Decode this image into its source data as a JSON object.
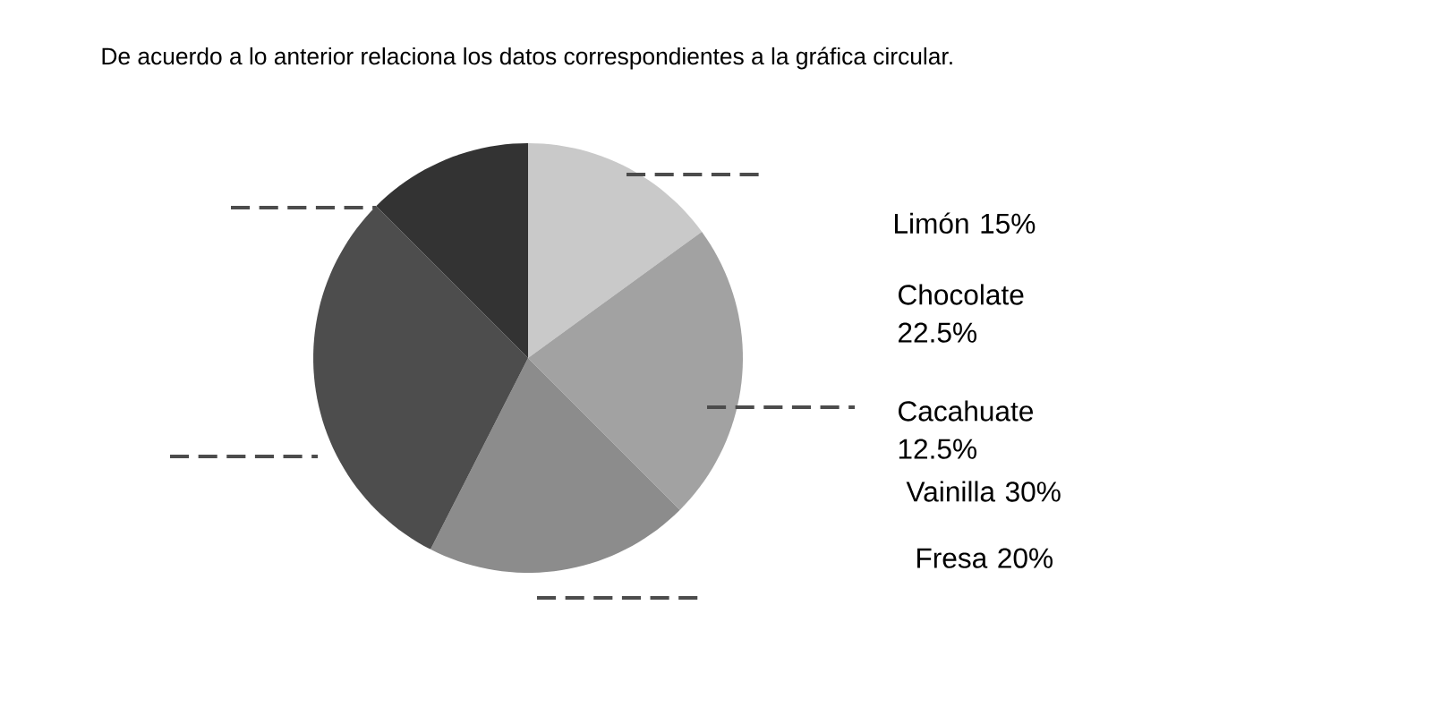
{
  "chart_data": {
    "type": "pie",
    "title": "De acuerdo a lo anterior relaciona los datos correspondientes a la gráfica circular.",
    "categories": [
      null,
      null,
      null,
      null,
      null
    ],
    "values": [
      15,
      22.5,
      20,
      30,
      12.5
    ],
    "colors": [
      "#c9c9c9",
      "#a2a2a2",
      "#8c8c8c",
      "#4d4d4d",
      "#333333"
    ],
    "annotations": [
      "Limón 15%",
      "Chocolate 22.5%",
      "Cacahuate 12.5%",
      "Vainilla 30%",
      "Fresa 20%"
    ]
  }
}
